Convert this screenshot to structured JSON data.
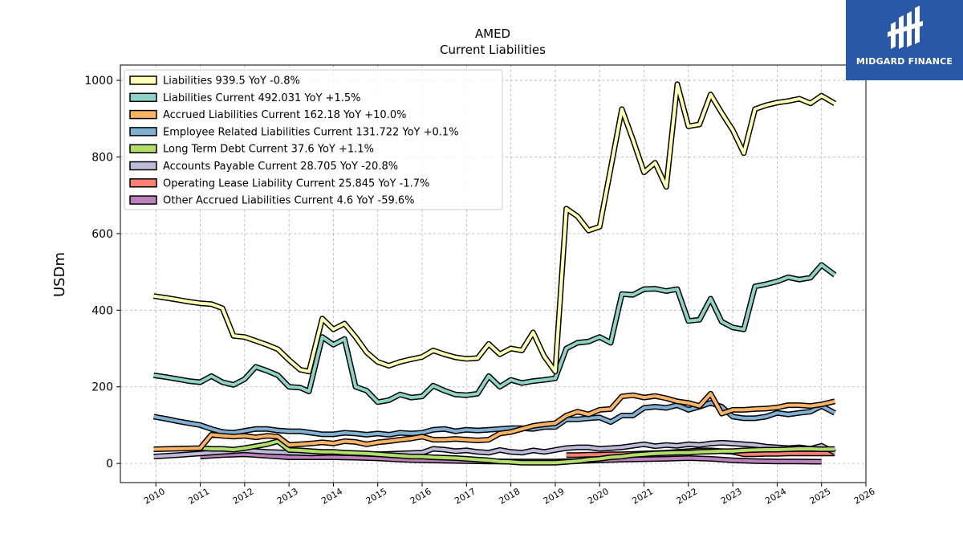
{
  "chart_data": {
    "type": "line",
    "title": "AMED",
    "subtitle": "Current  Liabilities",
    "ylabel": "USDm",
    "xlim": [
      2009.2,
      2026.0
    ],
    "ylim": [
      -50,
      1040
    ],
    "yticks": [
      0,
      200,
      400,
      600,
      800,
      1000
    ],
    "xticks": [
      2010,
      2011,
      2012,
      2013,
      2014,
      2015,
      2016,
      2017,
      2018,
      2019,
      2020,
      2021,
      2022,
      2023,
      2024,
      2025,
      2026
    ],
    "grid": true,
    "legend_position": "top-left",
    "series": [
      {
        "name": "Liabilities  939.5 YoY -0.8%",
        "color": "#ffffb3",
        "x": [
          2009.95,
          2010.25,
          2010.5,
          2010.75,
          2011.0,
          2011.25,
          2011.5,
          2011.75,
          2012.0,
          2012.25,
          2012.5,
          2012.75,
          2013.0,
          2013.25,
          2013.45,
          2013.75,
          2014.0,
          2014.25,
          2014.5,
          2014.75,
          2015.0,
          2015.25,
          2015.5,
          2015.75,
          2016.0,
          2016.25,
          2016.5,
          2016.75,
          2017.0,
          2017.25,
          2017.5,
          2017.75,
          2018.0,
          2018.25,
          2018.5,
          2018.75,
          2019.0,
          2019.25,
          2019.5,
          2019.75,
          2020.0,
          2020.25,
          2020.5,
          2020.75,
          2021.0,
          2021.25,
          2021.5,
          2021.75,
          2022.0,
          2022.25,
          2022.5,
          2022.75,
          2023.0,
          2023.25,
          2023.5,
          2023.75,
          2024.0,
          2024.25,
          2024.5,
          2024.75,
          2025.0,
          2025.3
        ],
        "values": [
          437,
          432,
          427,
          422,
          418,
          416,
          405,
          333,
          330,
          320,
          310,
          298,
          270,
          245,
          240,
          378,
          350,
          365,
          330,
          290,
          265,
          255,
          265,
          272,
          278,
          295,
          285,
          277,
          273,
          275,
          312,
          285,
          300,
          295,
          342,
          280,
          240,
          665,
          645,
          608,
          618,
          770,
          925,
          845,
          760,
          785,
          722,
          990,
          880,
          885,
          963,
          915,
          870,
          810,
          925,
          935,
          942,
          946,
          952,
          940,
          960,
          939.5
        ]
      },
      {
        "name": "Liabilities Current  492.031 YoY +1.5%",
        "color": "#8dd3c7",
        "x": [
          2009.95,
          2010.25,
          2010.5,
          2010.75,
          2011.0,
          2011.25,
          2011.5,
          2011.75,
          2012.0,
          2012.25,
          2012.5,
          2012.75,
          2013.0,
          2013.25,
          2013.45,
          2013.75,
          2014.0,
          2014.25,
          2014.5,
          2014.75,
          2015.0,
          2015.25,
          2015.5,
          2015.75,
          2016.0,
          2016.25,
          2016.5,
          2016.75,
          2017.0,
          2017.25,
          2017.5,
          2017.75,
          2018.0,
          2018.25,
          2018.5,
          2018.75,
          2019.0,
          2019.25,
          2019.5,
          2019.75,
          2020.0,
          2020.25,
          2020.5,
          2020.75,
          2021.0,
          2021.25,
          2021.5,
          2021.75,
          2022.0,
          2022.25,
          2022.5,
          2022.75,
          2023.0,
          2023.25,
          2023.5,
          2023.75,
          2024.0,
          2024.25,
          2024.5,
          2024.75,
          2025.0,
          2025.3
        ],
        "values": [
          230,
          225,
          220,
          215,
          212,
          228,
          212,
          205,
          220,
          252,
          242,
          230,
          200,
          198,
          188,
          330,
          310,
          325,
          200,
          190,
          160,
          165,
          180,
          172,
          175,
          203,
          190,
          180,
          178,
          182,
          228,
          200,
          218,
          210,
          215,
          218,
          222,
          300,
          315,
          318,
          330,
          315,
          442,
          440,
          455,
          456,
          450,
          455,
          372,
          375,
          430,
          370,
          355,
          350,
          462,
          468,
          475,
          486,
          480,
          485,
          518,
          492.031
        ]
      },
      {
        "name": "Accrued Liabilities Current  162.18 YoY +10.0%",
        "color": "#fdb462",
        "x": [
          2009.95,
          2011.0,
          2011.25,
          2011.5,
          2011.75,
          2012.0,
          2012.25,
          2012.5,
          2012.75,
          2013.0,
          2013.25,
          2013.5,
          2013.75,
          2014.0,
          2014.25,
          2014.5,
          2014.75,
          2015.0,
          2015.25,
          2015.5,
          2015.75,
          2016.0,
          2016.25,
          2016.5,
          2016.75,
          2017.0,
          2017.25,
          2017.5,
          2017.75,
          2018.0,
          2018.25,
          2018.5,
          2018.75,
          2019.0,
          2019.25,
          2019.5,
          2019.75,
          2020.0,
          2020.25,
          2020.5,
          2020.75,
          2021.0,
          2021.25,
          2021.5,
          2021.75,
          2022.0,
          2022.25,
          2022.5,
          2022.75,
          2023.0,
          2023.25,
          2023.5,
          2023.75,
          2024.0,
          2024.25,
          2024.5,
          2024.75,
          2025.0,
          2025.3
        ],
        "values": [
          37,
          40,
          75,
          72,
          70,
          72,
          68,
          72,
          70,
          48,
          50,
          52,
          55,
          52,
          58,
          56,
          50,
          55,
          58,
          62,
          65,
          70,
          62,
          62,
          64,
          62,
          60,
          62,
          78,
          82,
          90,
          98,
          102,
          105,
          125,
          135,
          128,
          140,
          142,
          175,
          178,
          172,
          176,
          170,
          162,
          158,
          150,
          182,
          130,
          140,
          140,
          142,
          143,
          146,
          152,
          152,
          150,
          154,
          162.18
        ]
      },
      {
        "name": "Employee Related Liabilities Current  131.722 YoY +0.1%",
        "color": "#80b1d3",
        "x": [
          2009.95,
          2010.25,
          2010.5,
          2010.75,
          2011.0,
          2011.25,
          2011.5,
          2011.75,
          2012.0,
          2012.25,
          2012.5,
          2012.75,
          2013.0,
          2013.25,
          2013.5,
          2013.75,
          2014.0,
          2014.25,
          2014.5,
          2014.75,
          2015.0,
          2015.25,
          2015.5,
          2015.75,
          2016.0,
          2016.25,
          2016.5,
          2016.75,
          2017.0,
          2017.25,
          2017.5,
          2017.75,
          2018.0,
          2018.25,
          2018.5,
          2018.75,
          2019.0,
          2019.25,
          2019.5,
          2019.75,
          2020.0,
          2020.25,
          2020.5,
          2020.75,
          2021.0,
          2021.25,
          2021.5,
          2021.75,
          2022.0,
          2022.25,
          2022.5,
          2022.75,
          2023.0,
          2023.25,
          2023.5,
          2023.75,
          2024.0,
          2024.25,
          2024.5,
          2024.75,
          2025.0,
          2025.3
        ],
        "values": [
          122,
          116,
          110,
          105,
          100,
          90,
          82,
          80,
          85,
          90,
          90,
          86,
          84,
          84,
          80,
          76,
          76,
          80,
          78,
          75,
          78,
          75,
          80,
          78,
          80,
          88,
          90,
          84,
          88,
          86,
          88,
          90,
          92,
          92,
          90,
          95,
          95,
          115,
          115,
          118,
          120,
          108,
          125,
          125,
          145,
          148,
          145,
          152,
          140,
          148,
          158,
          148,
          122,
          118,
          118,
          122,
          132,
          128,
          132,
          135,
          150,
          131.722
        ]
      },
      {
        "name": "Long Term Debt Current  37.6 YoY +1.1%",
        "color": "#b3de69",
        "x": [
          2011.0,
          2011.25,
          2011.5,
          2011.75,
          2012.0,
          2012.25,
          2012.5,
          2012.75,
          2013.0,
          2013.25,
          2013.5,
          2013.75,
          2014.0,
          2014.25,
          2014.5,
          2014.75,
          2015.0,
          2015.25,
          2015.5,
          2015.75,
          2016.0,
          2016.25,
          2016.5,
          2016.75,
          2017.0,
          2017.25,
          2017.5,
          2017.75,
          2018.0,
          2018.25,
          2018.5,
          2018.75,
          2019.0,
          2019.25,
          2019.5,
          2019.75,
          2020.0,
          2020.25,
          2020.5,
          2020.75,
          2021.0,
          2021.25,
          2021.5,
          2021.75,
          2022.0,
          2022.25,
          2022.5,
          2022.75,
          2023.0,
          2023.25,
          2023.5,
          2023.75,
          2024.0,
          2024.25,
          2024.5,
          2024.75,
          2025.0,
          2025.3
        ],
        "values": [
          40,
          38,
          38,
          36,
          40,
          45,
          50,
          58,
          35,
          34,
          32,
          30,
          30,
          28,
          27,
          26,
          24,
          22,
          20,
          18,
          18,
          16,
          15,
          14,
          12,
          10,
          8,
          5,
          4,
          2,
          2,
          2,
          2,
          4,
          6,
          10,
          12,
          16,
          18,
          22,
          24,
          26,
          27,
          28,
          28,
          30,
          31,
          32,
          32,
          34,
          35,
          36,
          36,
          37,
          38,
          38,
          37,
          37.6
        ]
      },
      {
        "name": "Accounts Payable Current  28.705 YoY -20.8%",
        "color": "#bebada",
        "x": [
          2009.95,
          2010.5,
          2011.0,
          2011.5,
          2012.0,
          2012.5,
          2013.0,
          2013.5,
          2014.0,
          2014.5,
          2015.0,
          2015.5,
          2016.0,
          2016.25,
          2016.5,
          2016.75,
          2017.0,
          2017.25,
          2017.5,
          2017.75,
          2018.0,
          2018.25,
          2018.5,
          2018.75,
          2019.0,
          2019.25,
          2019.5,
          2019.75,
          2020.0,
          2020.25,
          2020.5,
          2020.75,
          2021.0,
          2021.25,
          2021.5,
          2021.75,
          2022.0,
          2022.25,
          2022.5,
          2022.75,
          2023.0,
          2023.25,
          2023.5,
          2023.75,
          2024.0,
          2024.25,
          2024.5,
          2024.75,
          2025.0,
          2025.3
        ],
        "values": [
          18,
          22,
          26,
          30,
          34,
          30,
          28,
          26,
          28,
          26,
          24,
          26,
          28,
          38,
          36,
          32,
          34,
          30,
          28,
          35,
          30,
          28,
          34,
          30,
          35,
          40,
          42,
          42,
          38,
          40,
          42,
          46,
          50,
          45,
          48,
          46,
          50,
          48,
          52,
          54,
          52,
          50,
          48,
          44,
          42,
          40,
          42,
          38,
          46,
          28.705
        ]
      },
      {
        "name": "Operating Lease Liability Current  25.845 YoY -1.7%",
        "color": "#fb8072",
        "x": [
          2019.25,
          2019.5,
          2019.75,
          2020.0,
          2020.25,
          2020.5,
          2020.75,
          2021.0,
          2021.25,
          2021.5,
          2021.75,
          2022.0,
          2022.25,
          2022.5,
          2022.75,
          2023.0,
          2023.25,
          2023.5,
          2023.75,
          2024.0,
          2024.25,
          2024.5,
          2024.75,
          2025.0,
          2025.3
        ],
        "values": [
          22,
          22,
          23,
          23,
          24,
          24,
          25,
          26,
          27,
          28,
          30,
          32,
          34,
          34,
          32,
          30,
          24,
          24,
          25,
          25,
          26,
          26,
          26,
          26,
          25.845
        ]
      },
      {
        "name": "Other Accrued Liabilities Current  4.6 YoY -59.6%",
        "color": "#bc80bd",
        "x": [
          2011.0,
          2011.5,
          2012.0,
          2012.5,
          2013.0,
          2013.5,
          2014.0,
          2014.5,
          2015.0,
          2015.5,
          2016.0,
          2016.5,
          2017.0,
          2017.5,
          2018.0,
          2018.5,
          2019.0,
          2019.5,
          2020.0,
          2020.5,
          2021.0,
          2021.5,
          2022.0,
          2022.5,
          2023.0,
          2023.5,
          2024.0,
          2024.5,
          2025.0
        ],
        "values": [
          18,
          22,
          24,
          20,
          16,
          16,
          16,
          15,
          13,
          10,
          8,
          7,
          6,
          5,
          5,
          5,
          5,
          6,
          8,
          10,
          11,
          12,
          14,
          12,
          8,
          6,
          5,
          5,
          4.6
        ]
      }
    ]
  },
  "branding": {
    "logo_text": "MIDGARD FINANCE",
    "logo_bg": "#2a58a8"
  }
}
